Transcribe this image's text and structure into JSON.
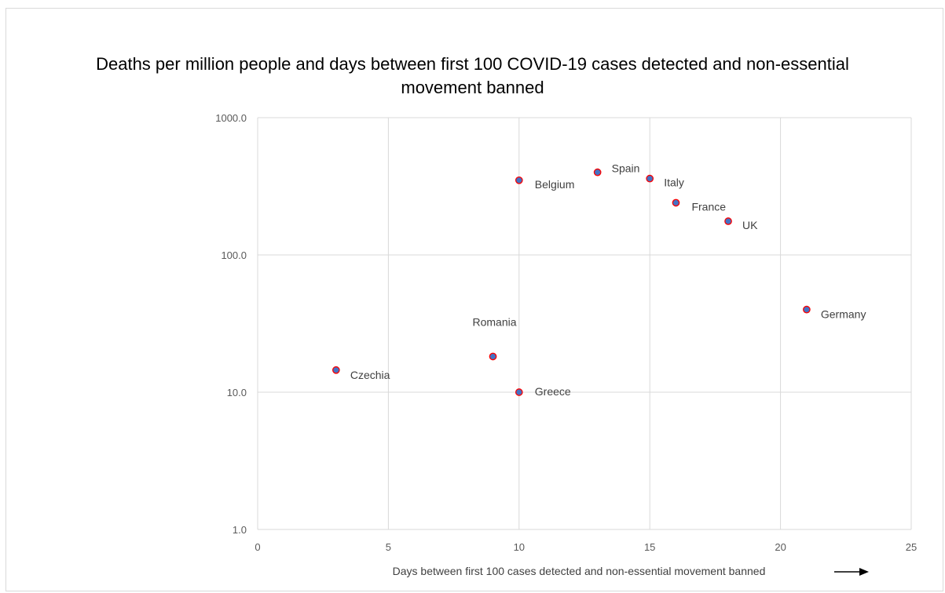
{
  "chart_data": {
    "type": "scatter",
    "title": "Deaths per million people and days between first 100 COVID-19 cases detected and non-essential movement banned",
    "xlabel": "Days between first 100 cases detected and non-essential movement banned",
    "ylabel": "",
    "xlim": [
      0,
      25
    ],
    "ylim": [
      1,
      1000
    ],
    "y_scale": "log",
    "x_ticks": [
      "0",
      "5",
      "10",
      "15",
      "20",
      "25"
    ],
    "y_ticks": [
      "1.0",
      "10.0",
      "100.0",
      "1000.0"
    ],
    "grid": true,
    "marker_fill": "#4472c4",
    "marker_edge": "#ff0000",
    "arrow_color": "#000000",
    "points": [
      {
        "label": "Belgium",
        "x": 10,
        "y": 350
      },
      {
        "label": "Spain",
        "x": 13,
        "y": 400
      },
      {
        "label": "Italy",
        "x": 15,
        "y": 360
      },
      {
        "label": "France",
        "x": 16,
        "y": 240
      },
      {
        "label": "UK",
        "x": 18,
        "y": 176
      },
      {
        "label": "Germany",
        "x": 21,
        "y": 40
      },
      {
        "label": "Romania",
        "x": 9,
        "y": 18.2
      },
      {
        "label": "Czechia",
        "x": 3,
        "y": 14.5
      },
      {
        "label": "Greece",
        "x": 10,
        "y": 10
      }
    ]
  }
}
